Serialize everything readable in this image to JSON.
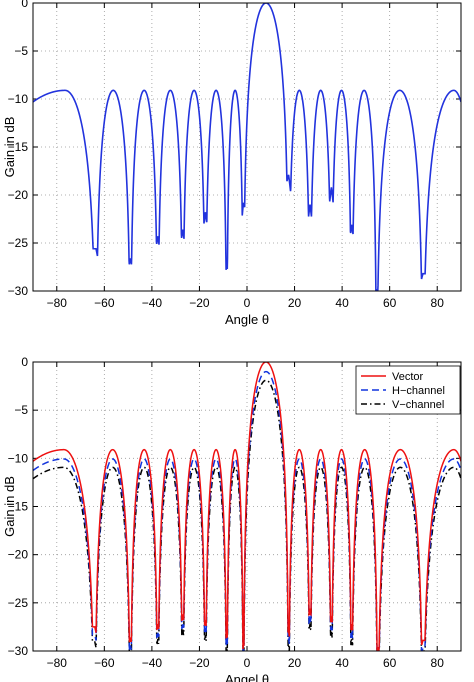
{
  "chart_data": [
    {
      "type": "line",
      "xlabel": "Angle θ",
      "ylabel": "Gain in dB",
      "xlim": [
        -90,
        90
      ],
      "ylim": [
        -30,
        0
      ],
      "xticks": [
        "−80",
        "−60",
        "−40",
        "−20",
        "0",
        "20",
        "40",
        "60",
        "80"
      ],
      "yticks": [
        "0",
        "−5",
        "−10",
        "−15",
        "−20",
        "−25",
        "−30"
      ],
      "grid": true,
      "legend": "none",
      "series": [
        {
          "color": "#2233dd",
          "offset": 0,
          "dash": ""
        }
      ],
      "pattern": {
        "main_lobe_peak_deg": 10,
        "main_lobe_peak_db": 0,
        "sidelobe_level_db": -9.1,
        "nulls_deg": [
          -63.5,
          -49,
          -37.5,
          -27,
          -17.5,
          -8.5,
          -1.5,
          17.5,
          26.5,
          35.5,
          44,
          54.5,
          74
        ],
        "null_depths_db": [
          -25.6,
          -26.6,
          -24.3,
          -23.6,
          -21.8,
          -27.2,
          -20.8,
          -17.9,
          -21,
          -19.2,
          -23.1,
          -29.8,
          -28.2
        ],
        "edge_values_db": [
          [
            -90,
            -10.3
          ],
          [
            90,
            -10.3
          ]
        ]
      }
    },
    {
      "type": "line",
      "xlabel": "Angel θ",
      "ylabel": "Gain in dB",
      "xlim": [
        -90,
        90
      ],
      "ylim": [
        -30,
        0
      ],
      "xticks": [
        "−80",
        "−60",
        "−40",
        "−20",
        "0",
        "20",
        "40",
        "60",
        "80"
      ],
      "yticks": [
        "0",
        "−5",
        "−10",
        "−15",
        "−20",
        "−25",
        "−30"
      ],
      "grid": true,
      "legend": "top-right",
      "series": [
        {
          "name": "Vector",
          "color": "#ee1111",
          "offset": 0,
          "dash": ""
        },
        {
          "name": "H−channel",
          "color": "#1133dd",
          "offset": -1.0,
          "dash": "7,4"
        },
        {
          "name": "V−channel",
          "color": "#000000",
          "offset": -1.9,
          "dash": "6,3,1.5,3"
        }
      ],
      "pattern": {
        "main_lobe_peak_deg": 10,
        "main_lobe_peak_db": 0,
        "sidelobe_level_db": -9.1,
        "nulls_deg": [
          -64,
          -49,
          -37.5,
          -27,
          -17.5,
          -8.5,
          -1.5,
          17.5,
          26.5,
          35.5,
          44,
          55,
          74
        ],
        "null_depths_db": [
          -27.5,
          -28.6,
          -27.2,
          -26.2,
          -26.8,
          -28.1,
          -29.3,
          -27.9,
          -25.6,
          -26.4,
          -27.2,
          -29.6,
          -28.9
        ],
        "edge_values_db": [
          [
            -90,
            -10.3
          ],
          [
            90,
            -10.3
          ]
        ]
      }
    }
  ]
}
